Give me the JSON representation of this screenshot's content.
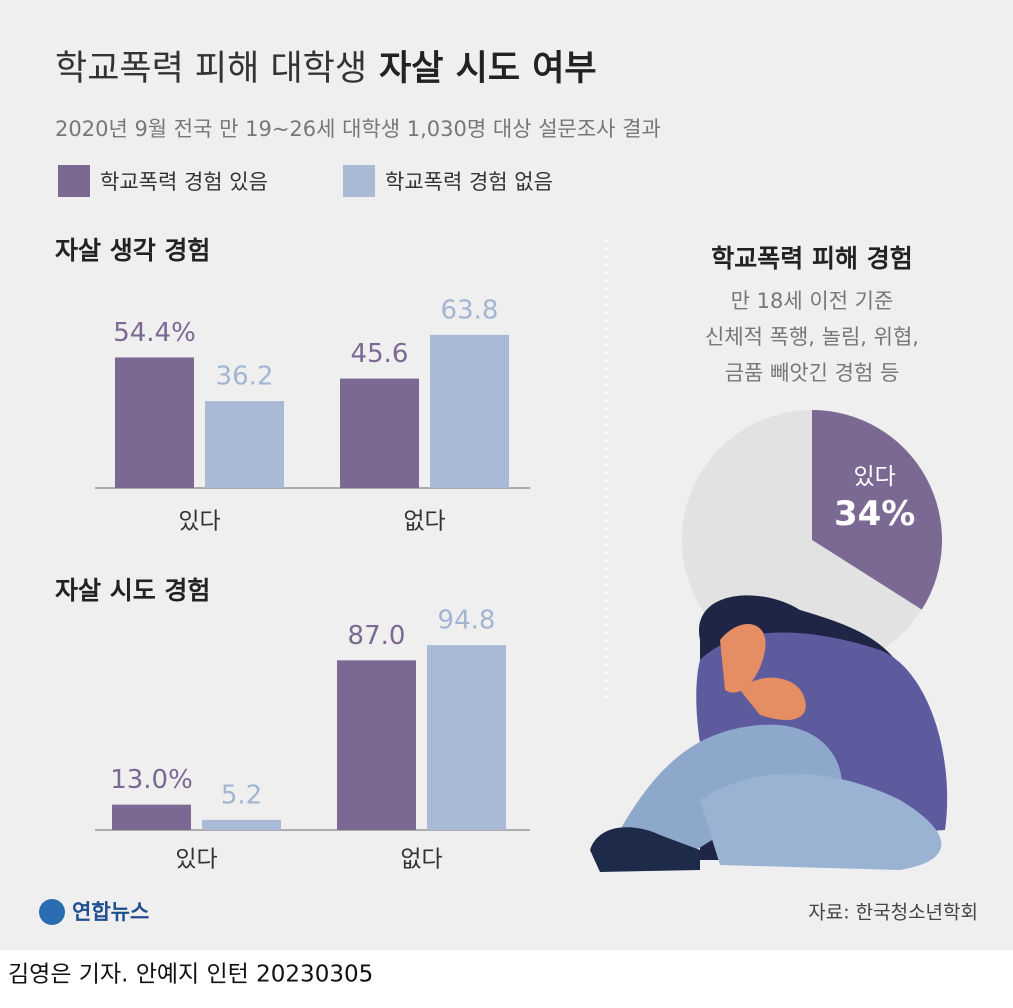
{
  "header": {
    "title_regular": "학교폭력 피해 대학생",
    "title_bold": "자살 시도 여부",
    "subtitle": "2020년 9월 전국 만 19~26세 대학생 1,030명 대상 설문조사 결과"
  },
  "chart_data": [
    {
      "type": "bar",
      "title": "자살 생각 경험",
      "categories": [
        "있다",
        "없다"
      ],
      "series": [
        {
          "name": "학교폭력 경험 있음",
          "color": "#7b6893",
          "values": [
            54.4,
            45.6
          ],
          "value_labels": [
            "54.4%",
            "45.6"
          ]
        },
        {
          "name": "학교폭력 경험 없음",
          "color": "#a9b9d6",
          "values": [
            36.2,
            63.8
          ]
        }
      ]
    },
    {
      "type": "bar",
      "title": "자살 시도 경험",
      "categories": [
        "있다",
        "없다"
      ],
      "series": [
        {
          "color": "#7b6893",
          "values": [
            13.0,
            87.0
          ],
          "value_labels": [
            "13.0%",
            "87.0"
          ]
        },
        {
          "color": "#a9b9d6",
          "values": [
            5.2,
            94.8
          ]
        }
      ]
    },
    {
      "type": "pie",
      "title": "학교폭력 피해 경험",
      "subtitle": [
        "만 18세 이전 기준",
        "신체적 폭행, 놀림, 위협,",
        "금품 빼앗긴 경험 등"
      ],
      "categories": [
        "있다",
        null
      ],
      "values": [
        34,
        66
      ],
      "value_labels": [
        "34%",
        null
      ],
      "colors": [
        "#7b6893",
        "#e2e2e2"
      ]
    }
  ],
  "footer": {
    "logo": "연합뉴스",
    "source": "자료: 한국청소년학회",
    "credit": "김영은 기자. 안예지 인턴  20230305"
  }
}
